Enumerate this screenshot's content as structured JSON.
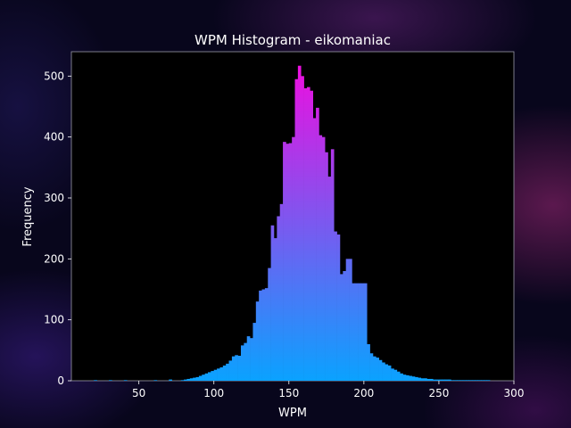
{
  "chart_data": {
    "type": "bar",
    "title": "WPM Histogram - eikomaniac",
    "xlabel": "WPM",
    "ylabel": "Frequency",
    "xlim": [
      5,
      300
    ],
    "ylim": [
      0,
      540
    ],
    "xticks": [
      50,
      100,
      150,
      200,
      250,
      300
    ],
    "yticks": [
      0,
      100,
      200,
      300,
      400,
      500
    ],
    "bin_width": 2,
    "bins_start": [
      20,
      30,
      40,
      60,
      70,
      78,
      80,
      82,
      84,
      86,
      88,
      90,
      92,
      94,
      96,
      98,
      100,
      102,
      104,
      106,
      108,
      110,
      112,
      114,
      116,
      118,
      120,
      122,
      124,
      126,
      128,
      130,
      132,
      134,
      136,
      138,
      140,
      142,
      144,
      146,
      148,
      150,
      152,
      154,
      156,
      158,
      160,
      162,
      164,
      166,
      168,
      170,
      172,
      174,
      176,
      178,
      180,
      182,
      184,
      186,
      188,
      190,
      192,
      194,
      196,
      198,
      200,
      202,
      204,
      206,
      208,
      210,
      212,
      214,
      216,
      218,
      220,
      222,
      224,
      226,
      228,
      230,
      232,
      234,
      236,
      238,
      240,
      242,
      244,
      246,
      248,
      250,
      252,
      254,
      256,
      258,
      260,
      262,
      264,
      266,
      268,
      270,
      272,
      274,
      276,
      278,
      280,
      282
    ],
    "values": [
      1,
      1,
      1,
      1,
      2,
      1,
      2,
      3,
      4,
      5,
      6,
      8,
      10,
      12,
      14,
      16,
      18,
      20,
      22,
      25,
      28,
      33,
      40,
      42,
      41,
      58,
      62,
      73,
      70,
      95,
      130,
      148,
      150,
      152,
      185,
      255,
      234,
      270,
      290,
      392,
      389,
      390,
      400,
      495,
      517,
      500,
      480,
      482,
      476,
      431,
      448,
      403,
      400,
      375,
      335,
      380,
      245,
      240,
      175,
      180,
      200,
      200,
      160,
      160,
      160,
      160,
      160,
      60,
      45,
      40,
      38,
      34,
      30,
      27,
      25,
      20,
      18,
      15,
      12,
      10,
      9,
      8,
      7,
      6,
      5,
      4,
      4,
      3,
      3,
      2,
      2,
      2,
      2,
      2,
      2,
      1,
      1,
      1,
      1,
      1,
      1,
      1,
      1,
      1,
      1,
      1,
      1,
      1
    ],
    "gradient": [
      "#0aa2ff",
      "#ee0ee0"
    ],
    "grid": false,
    "legend": "none"
  }
}
